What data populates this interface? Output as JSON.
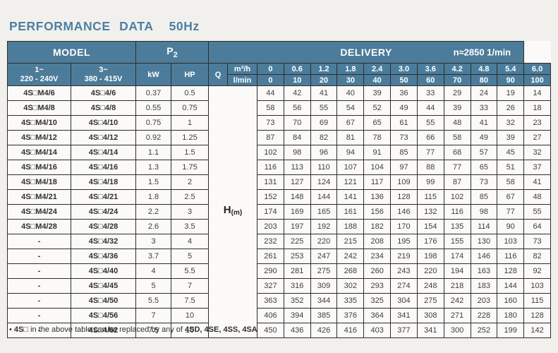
{
  "title": {
    "text": "PERFORMANCE DATA",
    "frequency": "50Hz"
  },
  "colors": {
    "header_bg": "#4c7c9a",
    "header_text": "#ffffff",
    "title_text": "#4b81a3",
    "border": "#2d2d2d",
    "body_bg": "#fbfaf8",
    "page_bg": "#f1f0ed"
  },
  "table": {
    "header": {
      "model_label": "MODEL",
      "p2_main": "P",
      "p2_sub": "2",
      "delivery_label": "DELIVERY",
      "speed_label": "n≈2850 1/min",
      "phase1_line1": "1~",
      "phase1_line2": "220 - 240V",
      "phase3_line1": "3~",
      "phase3_line2": "380 - 415V",
      "kw_label": "kW",
      "hp_label": "HP",
      "q_label": "Q",
      "q_unit_top": "m³/h",
      "q_unit_bottom": "l/min",
      "flow_m3h": [
        "0",
        "0.6",
        "1.2",
        "1.8",
        "2.4",
        "3.0",
        "3.6",
        "4.2",
        "4.8",
        "5.4",
        "6.0"
      ],
      "flow_lmin": [
        "0",
        "10",
        "20",
        "30",
        "40",
        "50",
        "60",
        "70",
        "80",
        "90",
        "100"
      ]
    },
    "h_label_main": "H",
    "h_label_sub": "(m)",
    "rows": [
      {
        "model_1ph": "4S□M4/6",
        "model_3ph": "4S□4/6",
        "kw": "0.37",
        "hp": "0.5",
        "heads": [
          44,
          42,
          41,
          40,
          39,
          36,
          33,
          29,
          24,
          19,
          14
        ]
      },
      {
        "model_1ph": "4S□M4/8",
        "model_3ph": "4S□4/8",
        "kw": "0.55",
        "hp": "0.75",
        "heads": [
          58,
          56,
          55,
          54,
          52,
          49,
          44,
          39,
          33,
          26,
          18
        ]
      },
      {
        "model_1ph": "4S□M4/10",
        "model_3ph": "4S□4/10",
        "kw": "0.75",
        "hp": "1",
        "heads": [
          73,
          70,
          69,
          67,
          65,
          61,
          55,
          48,
          41,
          32,
          23
        ]
      },
      {
        "model_1ph": "4S□M4/12",
        "model_3ph": "4S□4/12",
        "kw": "0.92",
        "hp": "1.25",
        "heads": [
          87,
          84,
          82,
          81,
          78,
          73,
          66,
          58,
          49,
          39,
          27
        ]
      },
      {
        "model_1ph": "4S□M4/14",
        "model_3ph": "4S□4/14",
        "kw": "1.1",
        "hp": "1.5",
        "heads": [
          102,
          98,
          96,
          94,
          91,
          85,
          77,
          68,
          57,
          45,
          32
        ]
      },
      {
        "model_1ph": "4S□M4/16",
        "model_3ph": "4S□4/16",
        "kw": "1.3",
        "hp": "1.75",
        "heads": [
          116,
          113,
          110,
          107,
          104,
          97,
          88,
          77,
          65,
          51,
          37
        ]
      },
      {
        "model_1ph": "4S□M4/18",
        "model_3ph": "4S□4/18",
        "kw": "1.5",
        "hp": "2",
        "heads": [
          131,
          127,
          124,
          121,
          117,
          109,
          99,
          87,
          73,
          58,
          41
        ]
      },
      {
        "model_1ph": "4S□M4/21",
        "model_3ph": "4S□4/21",
        "kw": "1.8",
        "hp": "2.5",
        "heads": [
          152,
          148,
          144,
          141,
          136,
          128,
          115,
          102,
          85,
          67,
          48
        ]
      },
      {
        "model_1ph": "4S□M4/24",
        "model_3ph": "4S□4/24",
        "kw": "2.2",
        "hp": "3",
        "heads": [
          174,
          169,
          165,
          161,
          156,
          146,
          132,
          116,
          98,
          77,
          55
        ]
      },
      {
        "model_1ph": "4S□M4/28",
        "model_3ph": "4S□4/28",
        "kw": "2.6",
        "hp": "3.5",
        "heads": [
          203,
          197,
          192,
          188,
          182,
          170,
          154,
          135,
          114,
          90,
          64
        ]
      },
      {
        "model_1ph": "-",
        "model_3ph": "4S□4/32",
        "kw": "3",
        "hp": "4",
        "heads": [
          232,
          225,
          220,
          215,
          208,
          195,
          176,
          155,
          130,
          103,
          73
        ]
      },
      {
        "model_1ph": "-",
        "model_3ph": "4S□4/36",
        "kw": "3.7",
        "hp": "5",
        "heads": [
          261,
          253,
          247,
          242,
          234,
          219,
          198,
          174,
          146,
          116,
          82
        ]
      },
      {
        "model_1ph": "-",
        "model_3ph": "4S□4/40",
        "kw": "4",
        "hp": "5.5",
        "heads": [
          290,
          281,
          275,
          268,
          260,
          243,
          220,
          194,
          163,
          128,
          92
        ]
      },
      {
        "model_1ph": "-",
        "model_3ph": "4S□4/45",
        "kw": "5",
        "hp": "7",
        "heads": [
          327,
          316,
          309,
          302,
          293,
          274,
          248,
          218,
          183,
          144,
          103
        ]
      },
      {
        "model_1ph": "-",
        "model_3ph": "4S□4/50",
        "kw": "5.5",
        "hp": "7.5",
        "heads": [
          363,
          352,
          344,
          335,
          325,
          304,
          275,
          242,
          203,
          160,
          115
        ]
      },
      {
        "model_1ph": "-",
        "model_3ph": "4S□4/56",
        "kw": "7",
        "hp": "10",
        "heads": [
          406,
          394,
          385,
          376,
          364,
          341,
          308,
          271,
          228,
          180,
          128
        ]
      },
      {
        "model_1ph": "-",
        "model_3ph": "4S□4/62",
        "kw": "7.5",
        "hp": "10",
        "heads": [
          450,
          436,
          426,
          416,
          403,
          377,
          341,
          300,
          252,
          199,
          142
        ]
      }
    ]
  },
  "footnote": {
    "bullet": "•",
    "bold_prefix": "4S□",
    "text": " in the above table can be replaced by any of ",
    "bold_suffix": "4SD, 4SE, 4SS, 4SA"
  }
}
